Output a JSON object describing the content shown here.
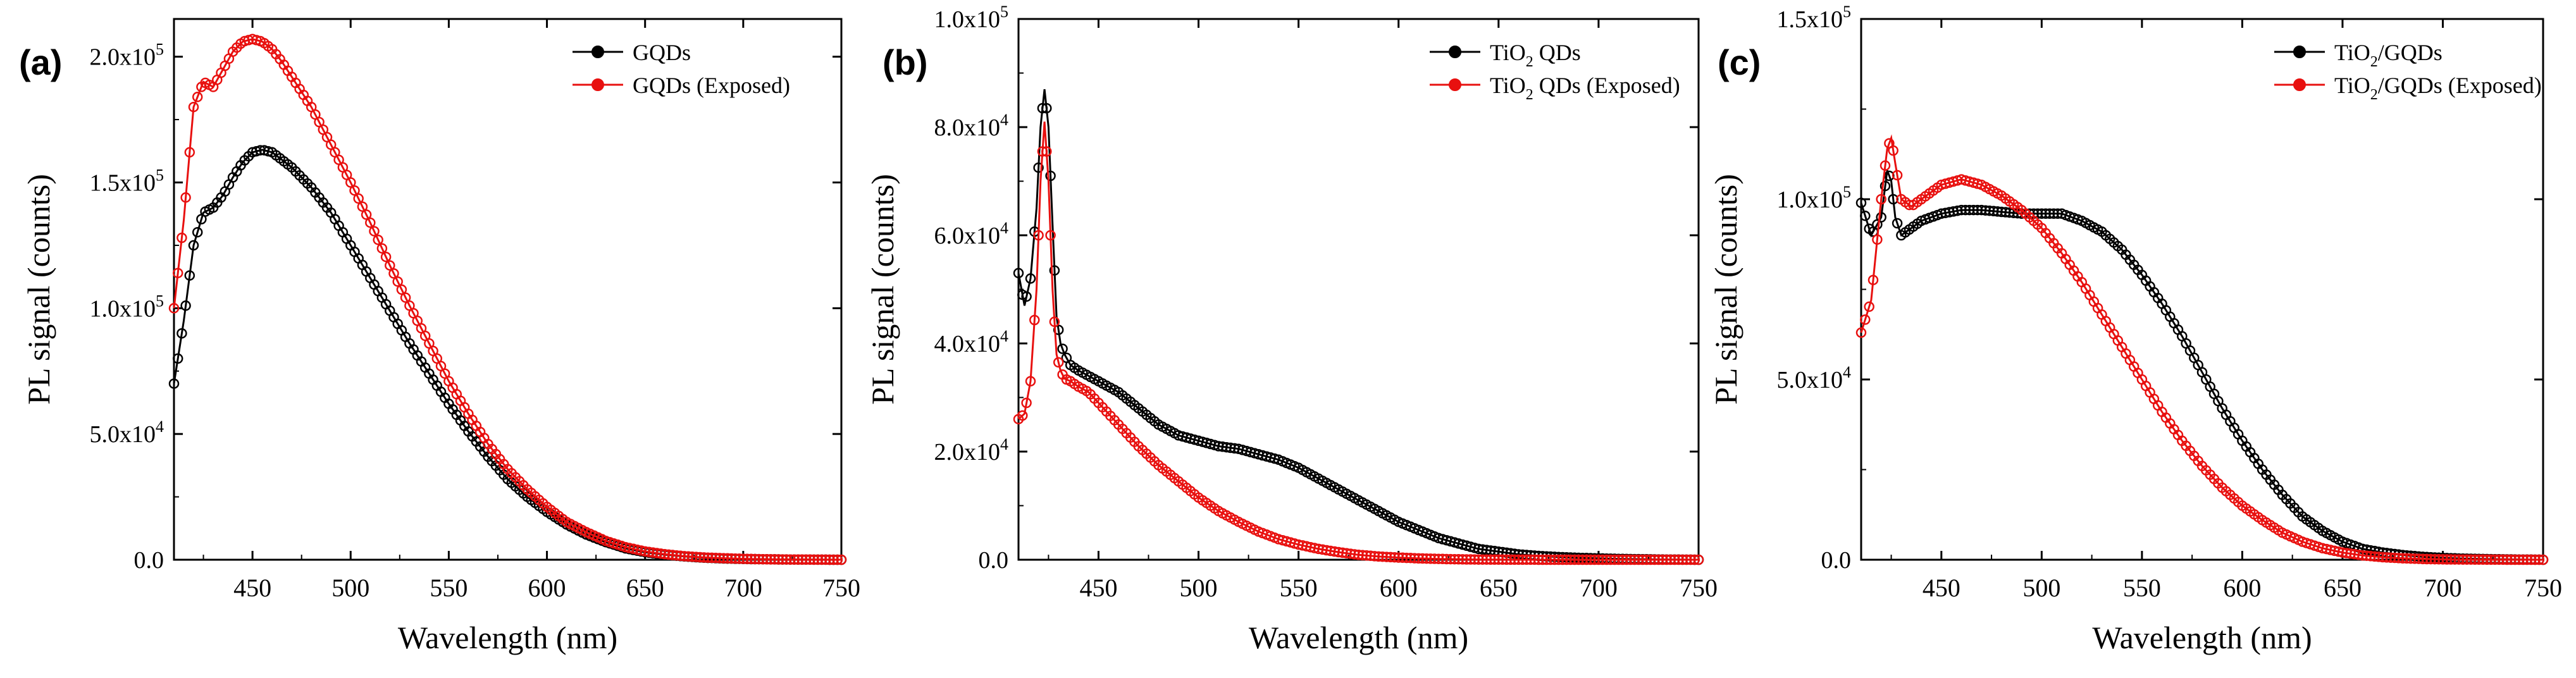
{
  "figure": {
    "domain": "PL spectra comparison"
  },
  "chart_data": [
    {
      "type": "scatter",
      "panel_label": "(a)",
      "xlabel": "Wavelength (nm)",
      "ylabel": "PL signal (counts)",
      "xlim": [
        410,
        750
      ],
      "ylim": [
        0,
        215000
      ],
      "xticks": [
        450,
        500,
        550,
        600,
        650,
        700,
        750
      ],
      "xtick_labels": [
        "450",
        "500",
        "550",
        "600",
        "650",
        "700",
        "750"
      ],
      "yticks": [
        0,
        50000,
        100000,
        150000,
        200000
      ],
      "ytick_labels": [
        {
          "mant": "0.0",
          "exp": ""
        },
        {
          "mant": "5.0x10",
          "exp": "4"
        },
        {
          "mant": "1.0x10",
          "exp": "5"
        },
        {
          "mant": "1.5x10",
          "exp": "5"
        },
        {
          "mant": "2.0x10",
          "exp": "5"
        }
      ],
      "legend_position": "top-right",
      "series": [
        {
          "name": "GQDs",
          "sub": "",
          "name_rest": "",
          "color": "#000000",
          "x": [
            410,
            415,
            420,
            425,
            430,
            435,
            440,
            445,
            450,
            455,
            460,
            465,
            470,
            480,
            490,
            500,
            510,
            520,
            530,
            540,
            550,
            560,
            570,
            580,
            590,
            600,
            610,
            620,
            630,
            640,
            650,
            660,
            670,
            680,
            690,
            700,
            710,
            720,
            730,
            740,
            750
          ],
          "y": [
            70000,
            95000,
            125000,
            138000,
            140000,
            145000,
            152000,
            158000,
            162000,
            163000,
            162000,
            159000,
            156000,
            148000,
            138000,
            125000,
            112000,
            99000,
            86000,
            74000,
            62000,
            51000,
            41000,
            32000,
            25000,
            19000,
            14000,
            10000,
            7000,
            4500,
            3000,
            2000,
            1300,
            800,
            500,
            300,
            200,
            100,
            50,
            20,
            0
          ]
        },
        {
          "name": "GQDs (Exposed)",
          "sub": "",
          "name_rest": "",
          "color": "#e8100f",
          "x": [
            410,
            415,
            420,
            425,
            430,
            435,
            440,
            445,
            450,
            455,
            460,
            465,
            470,
            480,
            490,
            500,
            510,
            520,
            530,
            540,
            550,
            560,
            570,
            580,
            590,
            600,
            610,
            620,
            630,
            640,
            650,
            660,
            670,
            680,
            690,
            700,
            710,
            720,
            730,
            740,
            750
          ],
          "y": [
            100000,
            135000,
            180000,
            190000,
            188000,
            195000,
            202000,
            206000,
            207000,
            206000,
            203000,
            198000,
            192000,
            180000,
            165000,
            150000,
            134000,
            117000,
            101000,
            86000,
            71000,
            58000,
            46000,
            36000,
            28000,
            21000,
            15000,
            11000,
            7500,
            5000,
            3300,
            2200,
            1400,
            900,
            600,
            350,
            200,
            100,
            50,
            20,
            0
          ]
        }
      ]
    },
    {
      "type": "scatter",
      "panel_label": "(b)",
      "xlabel": "Wavelength (nm)",
      "ylabel": "PL signal (counts)",
      "xlim": [
        410,
        750
      ],
      "ylim": [
        0,
        100000
      ],
      "xticks": [
        450,
        500,
        550,
        600,
        650,
        700,
        750
      ],
      "xtick_labels": [
        "450",
        "500",
        "550",
        "600",
        "650",
        "700",
        "750"
      ],
      "yticks": [
        0,
        20000,
        40000,
        60000,
        80000,
        100000
      ],
      "ytick_labels": [
        {
          "mant": "0.0",
          "exp": ""
        },
        {
          "mant": "2.0x10",
          "exp": "4"
        },
        {
          "mant": "4.0x10",
          "exp": "4"
        },
        {
          "mant": "6.0x10",
          "exp": "4"
        },
        {
          "mant": "8.0x10",
          "exp": "4"
        },
        {
          "mant": "1.0x10",
          "exp": "5"
        }
      ],
      "legend_position": "top-right",
      "series": [
        {
          "name": "TiO",
          "sub": "2",
          "name_rest": " QDs",
          "color": "#000000",
          "x": [
            410,
            413,
            416,
            419,
            421,
            423,
            425,
            427,
            429,
            431,
            433,
            436,
            440,
            445,
            450,
            460,
            470,
            480,
            490,
            500,
            510,
            520,
            530,
            540,
            550,
            560,
            570,
            580,
            590,
            600,
            610,
            620,
            630,
            640,
            650,
            660,
            670,
            680,
            690,
            700,
            710,
            720,
            730,
            740,
            750
          ],
          "y": [
            53000,
            47000,
            52000,
            65000,
            80000,
            87000,
            80000,
            62000,
            45000,
            40000,
            38000,
            36000,
            35000,
            34000,
            33000,
            31000,
            28000,
            25000,
            23000,
            22000,
            21000,
            20500,
            19500,
            18500,
            17000,
            15000,
            13000,
            11000,
            9000,
            7000,
            5500,
            4000,
            3000,
            2000,
            1500,
            1000,
            700,
            500,
            350,
            250,
            150,
            100,
            50,
            20,
            0
          ]
        },
        {
          "name": "TiO",
          "sub": "2",
          "name_rest": " QDs (Exposed)",
          "color": "#e8100f",
          "x": [
            410,
            413,
            416,
            419,
            421,
            423,
            425,
            427,
            429,
            431,
            433,
            436,
            440,
            445,
            450,
            460,
            470,
            480,
            490,
            500,
            510,
            520,
            530,
            540,
            550,
            560,
            570,
            580,
            590,
            600,
            610,
            620,
            630,
            640,
            650,
            660,
            670,
            680,
            690,
            700,
            710,
            720,
            730,
            740,
            750
          ],
          "y": [
            26000,
            27000,
            33000,
            50000,
            70000,
            81000,
            70000,
            50000,
            38000,
            35000,
            33500,
            33000,
            32000,
            31000,
            29000,
            25000,
            21000,
            17500,
            14500,
            11500,
            9000,
            7000,
            5200,
            3800,
            2800,
            2000,
            1400,
            900,
            600,
            400,
            250,
            150,
            80,
            40,
            20,
            10,
            5,
            0,
            0,
            0,
            0,
            0,
            0,
            0,
            0
          ]
        }
      ]
    },
    {
      "type": "scatter",
      "panel_label": "(c)",
      "xlabel": "Wavelength (nm)",
      "ylabel": "PL signal (counts)",
      "xlim": [
        410,
        750
      ],
      "ylim": [
        0,
        150000
      ],
      "xticks": [
        450,
        500,
        550,
        600,
        650,
        700,
        750
      ],
      "xtick_labels": [
        "450",
        "500",
        "550",
        "600",
        "650",
        "700",
        "750"
      ],
      "yticks": [
        0,
        50000,
        100000,
        150000
      ],
      "ytick_labels": [
        {
          "mant": "0.0",
          "exp": ""
        },
        {
          "mant": "5.0x10",
          "exp": "4"
        },
        {
          "mant": "1.0x10",
          "exp": "5"
        },
        {
          "mant": "1.5x10",
          "exp": "5"
        }
      ],
      "legend_position": "top-right",
      "series": [
        {
          "name": "TiO",
          "sub": "2",
          "name_rest": "/GQDs",
          "color": "#000000",
          "x": [
            410,
            415,
            420,
            423,
            425,
            427,
            430,
            435,
            440,
            450,
            460,
            470,
            480,
            490,
            500,
            510,
            520,
            530,
            540,
            550,
            560,
            570,
            580,
            590,
            600,
            610,
            620,
            630,
            640,
            650,
            660,
            670,
            680,
            690,
            700,
            710,
            720,
            730,
            740,
            750
          ],
          "y": [
            99000,
            90000,
            95000,
            108000,
            105000,
            95000,
            90000,
            92000,
            94000,
            96000,
            97000,
            97000,
            96500,
            96000,
            96000,
            96000,
            94000,
            91000,
            86000,
            79000,
            71000,
            62000,
            52000,
            42000,
            33000,
            25000,
            18000,
            12000,
            8000,
            5000,
            3000,
            2000,
            1300,
            800,
            500,
            300,
            200,
            100,
            50,
            0
          ]
        },
        {
          "name": "TiO",
          "sub": "2",
          "name_rest": "/GQDs (Exposed)",
          "color": "#e8100f",
          "x": [
            410,
            415,
            420,
            423,
            425,
            427,
            430,
            435,
            440,
            450,
            460,
            470,
            480,
            490,
            500,
            510,
            520,
            530,
            540,
            550,
            560,
            570,
            580,
            590,
            600,
            610,
            620,
            630,
            640,
            650,
            660,
            670,
            680,
            690,
            700,
            710,
            720,
            730,
            740,
            750
          ],
          "y": [
            63000,
            72000,
            100000,
            114000,
            117000,
            110000,
            100000,
            98000,
            100000,
            104000,
            105500,
            104000,
            101000,
            97000,
            92000,
            85000,
            77000,
            68000,
            59000,
            50000,
            41000,
            33000,
            26000,
            20000,
            15000,
            11000,
            7500,
            5000,
            3200,
            2000,
            1200,
            700,
            400,
            200,
            100,
            60,
            30,
            10,
            0,
            0
          ]
        }
      ]
    }
  ]
}
